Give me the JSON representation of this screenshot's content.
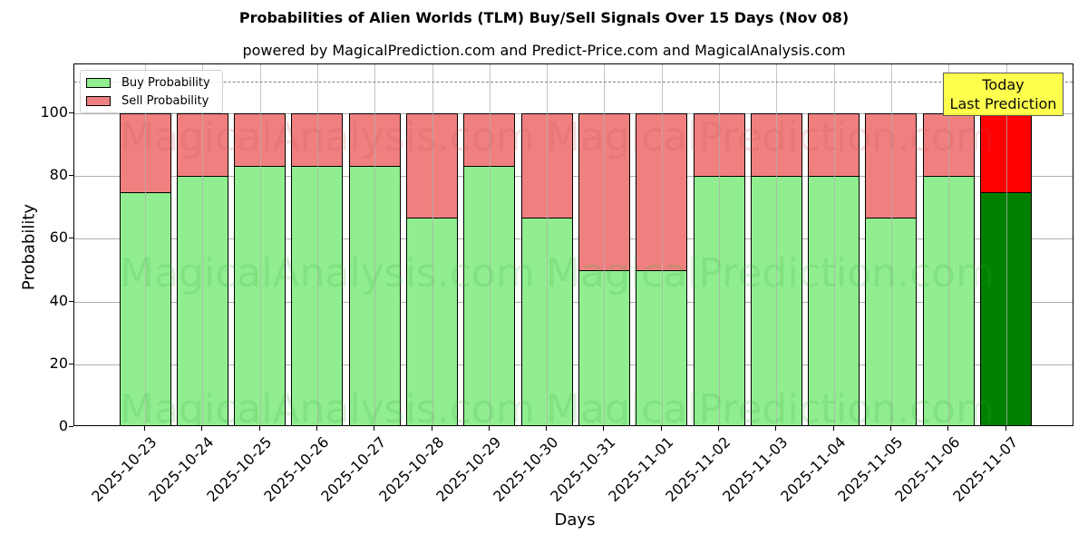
{
  "chart_data": {
    "type": "bar",
    "stacked": true,
    "title": "Probabilities of Alien Worlds (TLM) Buy/Sell Signals Over 15 Days (Nov 08)",
    "subtitle": "powered by MagicalPrediction.com and Predict-Price.com and MagicalAnalysis.com",
    "xlabel": "Days",
    "ylabel": "Probability",
    "ylim": [
      0,
      115
    ],
    "yticks": [
      0,
      20,
      40,
      60,
      80,
      100
    ],
    "grid": true,
    "legend_position": "upper left",
    "categories": [
      "2025-10-23",
      "2025-10-24",
      "2025-10-25",
      "2025-10-26",
      "2025-10-27",
      "2025-10-28",
      "2025-10-29",
      "2025-10-30",
      "2025-10-31",
      "2025-11-01",
      "2025-11-02",
      "2025-11-03",
      "2025-11-04",
      "2025-11-05",
      "2025-11-06",
      "2025-11-07"
    ],
    "series": [
      {
        "name": "Buy Probability",
        "color": "#90ee90",
        "values": [
          75,
          80,
          83.33,
          83.33,
          83.33,
          66.67,
          83.33,
          66.67,
          50,
          50,
          80,
          80,
          80,
          66.67,
          80,
          75
        ]
      },
      {
        "name": "Sell Probability",
        "color": "#f08080",
        "values": [
          25,
          20,
          16.67,
          16.67,
          16.67,
          33.33,
          16.67,
          33.33,
          50,
          50,
          20,
          20,
          20,
          33.33,
          20,
          25
        ]
      }
    ],
    "highlight_last": {
      "buy_color": "#008000",
      "sell_color": "#ff0000"
    },
    "reference_line": {
      "y": 110,
      "style": "dashed",
      "color": "#808080"
    },
    "annotation": {
      "line1": "Today",
      "line2": "Last Prediction",
      "background": "#ffff44"
    }
  },
  "watermarks": [
    "MagicalAnalysis.com",
    "MagicalPrediction.com"
  ]
}
